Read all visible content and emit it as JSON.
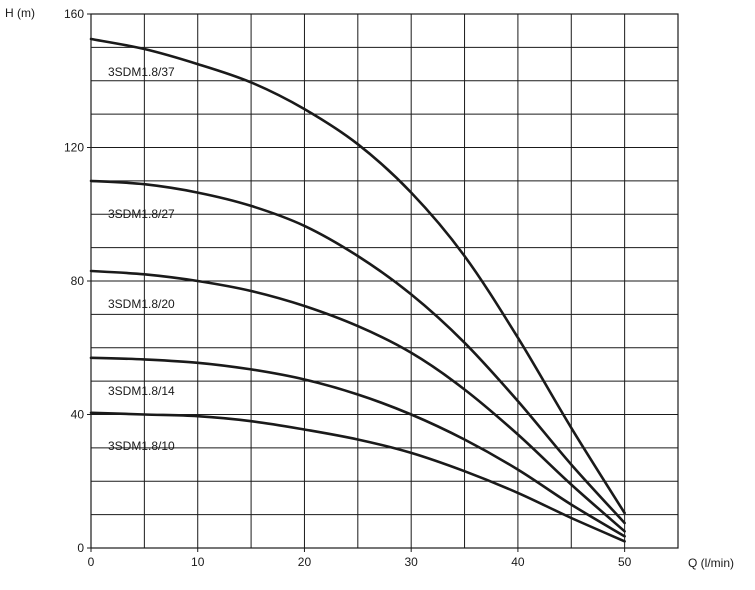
{
  "chart_data": {
    "type": "line",
    "xlabel": "Q (l/min)",
    "ylabel": "H (m)",
    "xlim": [
      0,
      55
    ],
    "ylim": [
      0,
      160
    ],
    "x_ticks": [
      0,
      10,
      20,
      30,
      40,
      50
    ],
    "y_ticks": [
      0,
      40,
      80,
      120,
      160
    ],
    "grid": true,
    "legend": "inline labels",
    "series": [
      {
        "name": "3SDM1.8/37",
        "x": [
          0,
          5,
          10,
          15,
          20,
          25,
          30,
          35,
          40,
          45,
          50
        ],
        "values": [
          152.5,
          149.5,
          145,
          139.5,
          131.5,
          121,
          106.5,
          87.5,
          63,
          36,
          10.5
        ]
      },
      {
        "name": "3SDM1.8/27",
        "x": [
          0,
          5,
          10,
          15,
          20,
          25,
          30,
          35,
          40,
          45,
          50
        ],
        "values": [
          110,
          109,
          106.5,
          102.5,
          96.5,
          87.5,
          76,
          61.5,
          44,
          25,
          7.5
        ]
      },
      {
        "name": "3SDM1.8/20",
        "x": [
          0,
          5,
          10,
          15,
          20,
          25,
          30,
          35,
          40,
          45,
          50
        ],
        "values": [
          83,
          82,
          80,
          77,
          72.5,
          66.5,
          58.5,
          47.5,
          34,
          19,
          5
        ]
      },
      {
        "name": "3SDM1.8/14",
        "x": [
          0,
          5,
          10,
          15,
          20,
          25,
          30,
          35,
          40,
          45,
          50
        ],
        "values": [
          57,
          56.5,
          55.5,
          53.5,
          50.5,
          46,
          40,
          32.5,
          23.5,
          13,
          3.5
        ]
      },
      {
        "name": "3SDM1.8/10",
        "x": [
          0,
          5,
          10,
          15,
          20,
          25,
          30,
          35,
          40,
          45,
          50
        ],
        "values": [
          40.5,
          40,
          39.5,
          38,
          35.5,
          32.5,
          28.5,
          23,
          16.5,
          9,
          2
        ]
      }
    ]
  }
}
